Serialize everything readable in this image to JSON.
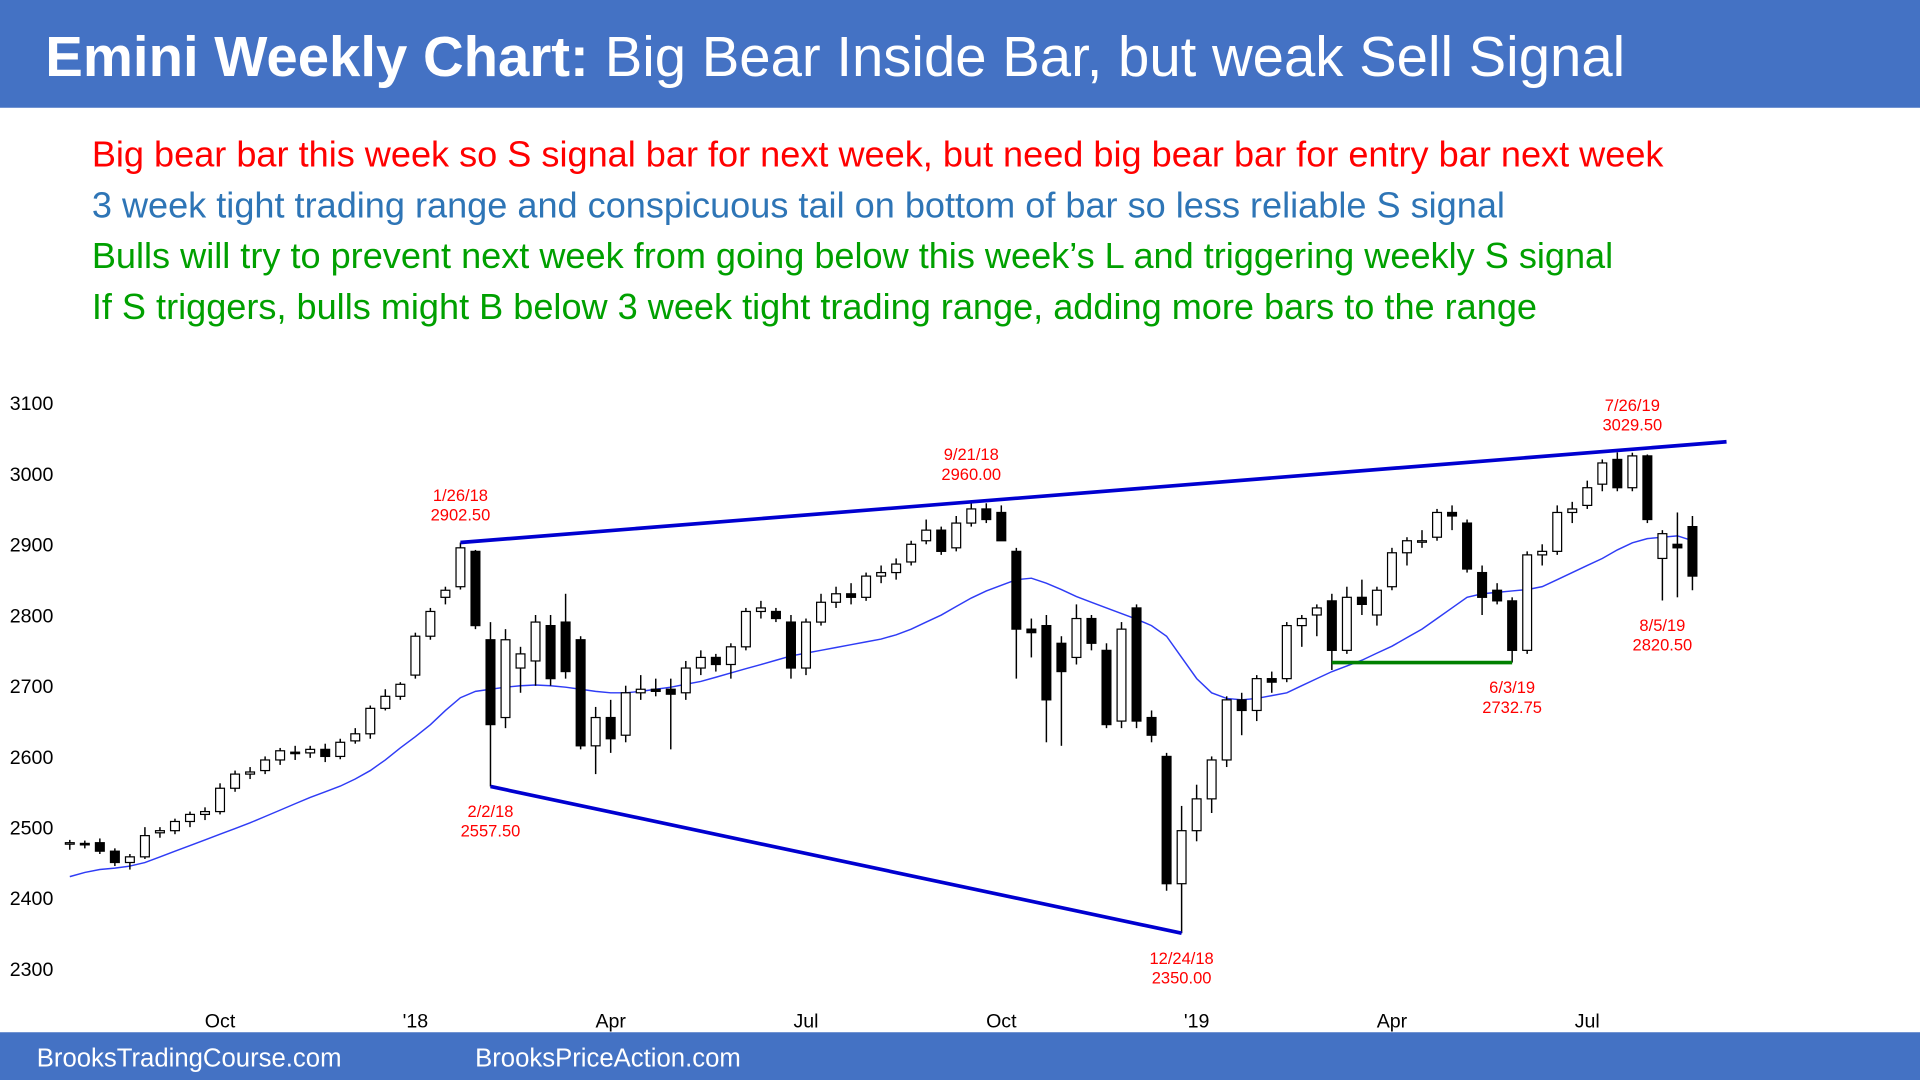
{
  "header": {
    "title_bold": "Emini Weekly Chart:",
    "title_rest": "Big Bear Inside Bar, but weak Sell Signal",
    "color": "#4472c4"
  },
  "notes": [
    {
      "text": "Big bear bar this week so S signal bar for next week, but need big bear bar for entry bar next week",
      "color": "#ff0000"
    },
    {
      "text": "3 week tight trading range and conspicuous tail on bottom of bar so less reliable S signal",
      "color": "#2e75b6"
    },
    {
      "text": "Bulls will try to prevent next week from going below this week’s L and triggering weekly S signal",
      "color": "#00a000"
    },
    {
      "text": "If S triggers, bulls might B below 3 week tight trading range, adding more bars to the range",
      "color": "#00a000"
    }
  ],
  "footer": {
    "left": "BrooksTradingCourse.com",
    "right": "BrooksPriceAction.com",
    "color": "#4472c4"
  },
  "chart_data": {
    "type": "candlestick",
    "categories": [
      null,
      null,
      null,
      null,
      null,
      null,
      null,
      null,
      null,
      null,
      "Oct",
      null,
      null,
      null,
      null,
      null,
      null,
      null,
      null,
      null,
      null,
      null,
      null,
      "'18",
      null,
      null,
      null,
      null,
      null,
      null,
      null,
      null,
      null,
      null,
      null,
      null,
      "Apr",
      null,
      null,
      null,
      null,
      null,
      null,
      null,
      null,
      null,
      null,
      null,
      null,
      "Jul",
      null,
      null,
      null,
      null,
      null,
      null,
      null,
      null,
      null,
      null,
      null,
      null,
      "Oct",
      null,
      null,
      null,
      null,
      null,
      null,
      null,
      null,
      null,
      null,
      null,
      null,
      "'19",
      null,
      null,
      null,
      null,
      null,
      null,
      null,
      null,
      null,
      null,
      null,
      null,
      "Apr",
      null,
      null,
      null,
      null,
      null,
      null,
      null,
      null,
      null,
      null,
      null,
      null,
      "Jul",
      null,
      null,
      null,
      null,
      null,
      null,
      null
    ],
    "open": [
      2476,
      2477,
      2478,
      2466,
      2450,
      2458,
      2492,
      2495,
      2508,
      2518,
      2522,
      2555,
      2575,
      2580,
      2595,
      2606,
      2605,
      2610,
      2600,
      2622,
      2632,
      2668,
      2685,
      2715,
      2770,
      2825,
      2840,
      2890,
      2765,
      2655,
      2725,
      2735,
      2785,
      2790,
      2765,
      2615,
      2655,
      2630,
      2690,
      2695,
      2695,
      2690,
      2725,
      2740,
      2730,
      2755,
      2805,
      2805,
      2790,
      2725,
      2790,
      2818,
      2830,
      2825,
      2855,
      2860,
      2875,
      2905,
      2920,
      2895,
      2930,
      2950,
      2945,
      2890,
      2780,
      2785,
      2760,
      2740,
      2795,
      2750,
      2650,
      2810,
      2655,
      2600,
      2420,
      2495,
      2540,
      2595,
      2680,
      2665,
      2710,
      2710,
      2785,
      2800,
      2820,
      2750,
      2825,
      2800,
      2840,
      2888,
      2905,
      2910,
      2945,
      2930,
      2860,
      2835,
      2820,
      2750,
      2885,
      2890,
      2945,
      2955,
      2985,
      3020,
      2980,
      3025,
      2880,
      2900,
      2925
    ],
    "high": [
      2482,
      2481,
      2484,
      2470,
      2462,
      2500,
      2500,
      2512,
      2522,
      2528,
      2562,
      2580,
      2585,
      2600,
      2612,
      2615,
      2615,
      2618,
      2625,
      2640,
      2672,
      2695,
      2705,
      2775,
      2810,
      2840,
      2902.5,
      2892,
      2790,
      2780,
      2755,
      2800,
      2800,
      2830,
      2770,
      2670,
      2680,
      2700,
      2715,
      2710,
      2710,
      2735,
      2750,
      2745,
      2760,
      2810,
      2820,
      2810,
      2800,
      2795,
      2830,
      2840,
      2845,
      2860,
      2870,
      2880,
      2905,
      2935,
      2925,
      2940,
      2960,
      2958,
      2955,
      2895,
      2795,
      2800,
      2770,
      2815,
      2800,
      2760,
      2790,
      2815,
      2665,
      2605,
      2530,
      2560,
      2600,
      2685,
      2690,
      2715,
      2720,
      2790,
      2800,
      2815,
      2830,
      2840,
      2850,
      2840,
      2895,
      2910,
      2920,
      2950,
      2955,
      2935,
      2870,
      2845,
      2825,
      2890,
      2900,
      2955,
      2960,
      2990,
      3020,
      3030,
      3029.5,
      3027,
      2920,
      2945,
      2940
    ],
    "low": [
      2468,
      2470,
      2462,
      2445,
      2440,
      2455,
      2485,
      2490,
      2500,
      2510,
      2518,
      2550,
      2568,
      2575,
      2588,
      2595,
      2598,
      2592,
      2596,
      2618,
      2625,
      2665,
      2680,
      2710,
      2765,
      2815,
      2836,
      2780,
      2557.5,
      2640,
      2690,
      2700,
      2700,
      2710,
      2610,
      2575,
      2605,
      2620,
      2680,
      2685,
      2610,
      2680,
      2715,
      2720,
      2710,
      2750,
      2795,
      2790,
      2710,
      2715,
      2785,
      2810,
      2815,
      2820,
      2845,
      2850,
      2870,
      2900,
      2885,
      2890,
      2925,
      2930,
      2905,
      2710,
      2740,
      2620,
      2615,
      2730,
      2750,
      2640,
      2640,
      2640,
      2620,
      2410,
      2350,
      2480,
      2520,
      2585,
      2630,
      2650,
      2690,
      2705,
      2755,
      2770,
      2722.25,
      2745,
      2800,
      2785,
      2835,
      2870,
      2895,
      2905,
      2920,
      2860,
      2800,
      2815,
      2732.75,
      2745,
      2870,
      2885,
      2930,
      2950,
      2975,
      2975,
      2975,
      2930,
      2820.5,
      2825,
      2835
    ],
    "close": [
      2478,
      2476,
      2466,
      2450,
      2458,
      2488,
      2495,
      2508,
      2518,
      2522,
      2555,
      2575,
      2578,
      2595,
      2608,
      2605,
      2610,
      2600,
      2620,
      2632,
      2668,
      2685,
      2702,
      2770,
      2805,
      2835,
      2895,
      2785,
      2645,
      2765,
      2745,
      2790,
      2710,
      2720,
      2615,
      2655,
      2625,
      2690,
      2695,
      2692,
      2688,
      2725,
      2740,
      2730,
      2755,
      2805,
      2810,
      2795,
      2725,
      2790,
      2818,
      2830,
      2825,
      2855,
      2860,
      2872,
      2900,
      2920,
      2890,
      2930,
      2950,
      2935,
      2905,
      2780,
      2775,
      2680,
      2720,
      2795,
      2760,
      2645,
      2780,
      2650,
      2630,
      2420,
      2495,
      2540,
      2595,
      2680,
      2665,
      2710,
      2705,
      2785,
      2795,
      2810,
      2750,
      2825,
      2815,
      2835,
      2888,
      2905,
      2905,
      2945,
      2940,
      2865,
      2825,
      2820,
      2750,
      2885,
      2890,
      2945,
      2950,
      2980,
      3015,
      2980,
      3025,
      2935,
      2915,
      2895,
      2855
    ],
    "up_color": "#ffffff",
    "down_color": "#000000",
    "moving_average": {
      "color": "#2f3cf5",
      "values": [
        2430,
        2436,
        2440,
        2442,
        2445,
        2450,
        2458,
        2466,
        2474,
        2482,
        2490,
        2498,
        2506,
        2515,
        2524,
        2533,
        2542,
        2550,
        2558,
        2568,
        2580,
        2595,
        2612,
        2628,
        2645,
        2665,
        2683,
        2692,
        2695,
        2698,
        2700,
        2701,
        2700,
        2698,
        2695,
        2692,
        2690,
        2690,
        2692,
        2695,
        2698,
        2702,
        2706,
        2712,
        2718,
        2724,
        2730,
        2736,
        2742,
        2746,
        2750,
        2754,
        2758,
        2762,
        2766,
        2772,
        2780,
        2790,
        2800,
        2812,
        2824,
        2834,
        2842,
        2850,
        2852,
        2845,
        2836,
        2826,
        2818,
        2810,
        2802,
        2794,
        2785,
        2770,
        2740,
        2710,
        2690,
        2682,
        2680,
        2682,
        2686,
        2690,
        2700,
        2710,
        2720,
        2728,
        2736,
        2746,
        2756,
        2768,
        2780,
        2795,
        2810,
        2825,
        2830,
        2832,
        2834,
        2836,
        2840,
        2850,
        2860,
        2870,
        2880,
        2892,
        2902,
        2908,
        2910,
        2912,
        2905
      ]
    },
    "ylim": [
      2300,
      3100
    ],
    "yticks": [
      2300,
      2400,
      2500,
      2600,
      2700,
      2800,
      2900,
      3000,
      3100
    ],
    "annotations": {
      "dates": [
        "1/26/18",
        "2/2/18",
        "9/21/18",
        "12/24/18",
        "6/3/19",
        "7/26/19",
        "8/5/19"
      ],
      "values": [
        2902.5,
        2557.5,
        2960,
        2350,
        2732.75,
        3029.5,
        2820.5
      ],
      "value_labels": [
        "2902.50",
        "2557.50",
        "2960.00",
        "2350.00",
        "2732.75",
        "3029.50",
        "2820.50"
      ],
      "color": "#ff0000"
    },
    "trendline_color": "#0000d0",
    "support_color": "#008000"
  }
}
